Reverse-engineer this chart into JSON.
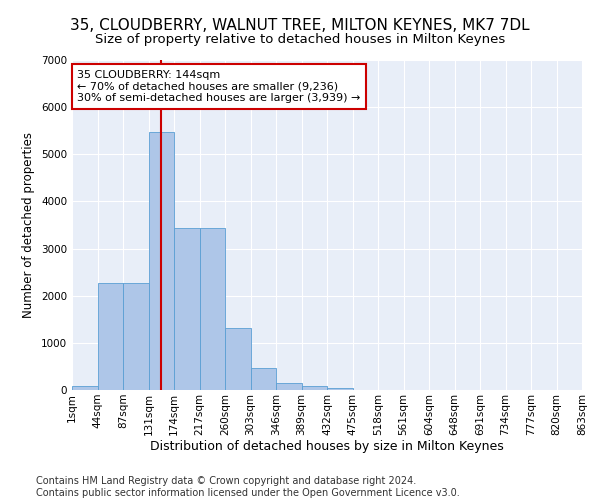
{
  "title": "35, CLOUDBERRY, WALNUT TREE, MILTON KEYNES, MK7 7DL",
  "subtitle": "Size of property relative to detached houses in Milton Keynes",
  "xlabel": "Distribution of detached houses by size in Milton Keynes",
  "ylabel": "Number of detached properties",
  "footer_line1": "Contains HM Land Registry data © Crown copyright and database right 2024.",
  "footer_line2": "Contains public sector information licensed under the Open Government Licence v3.0.",
  "annotation_title": "35 CLOUDBERRY: 144sqm",
  "annotation_line2": "← 70% of detached houses are smaller (9,236)",
  "annotation_line3": "30% of semi-detached houses are larger (3,939) →",
  "bar_color": "#aec6e8",
  "bar_edge_color": "#5a9fd4",
  "vline_color": "#cc0000",
  "bg_color": "#e8eef8",
  "grid_color": "#ffffff",
  "ylim": [
    0,
    7000
  ],
  "bar_values": [
    80,
    2280,
    2280,
    5480,
    3440,
    3440,
    1320,
    470,
    155,
    80,
    50,
    0,
    0,
    0,
    0,
    0,
    0,
    0,
    0,
    0
  ],
  "tick_labels": [
    "1sqm",
    "44sqm",
    "87sqm",
    "131sqm",
    "174sqm",
    "217sqm",
    "260sqm",
    "303sqm",
    "346sqm",
    "389sqm",
    "432sqm",
    "475sqm",
    "518sqm",
    "561sqm",
    "604sqm",
    "648sqm",
    "691sqm",
    "734sqm",
    "777sqm",
    "820sqm",
    "863sqm"
  ],
  "title_fontsize": 11,
  "subtitle_fontsize": 9.5,
  "xlabel_fontsize": 9,
  "ylabel_fontsize": 8.5,
  "tick_fontsize": 7.5,
  "footer_fontsize": 7,
  "annotation_fontsize": 8,
  "vline_x_bar_index": 3.5
}
